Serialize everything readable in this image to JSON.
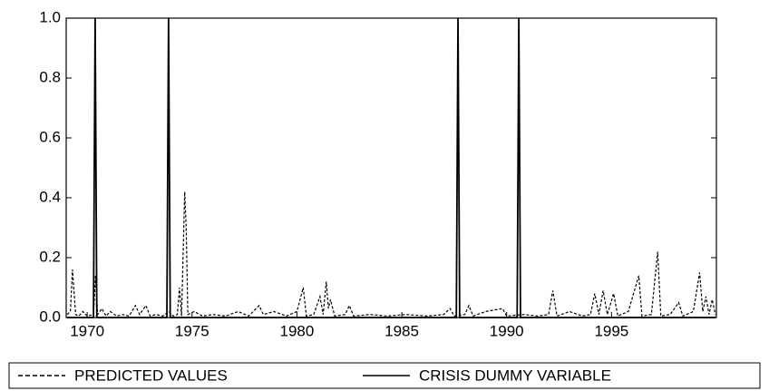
{
  "chart_data": {
    "type": "line",
    "xlim": [
      1969,
      2000
    ],
    "xticks": [
      1970,
      1975,
      1980,
      1985,
      1990,
      1995
    ],
    "ylim": [
      0,
      1
    ],
    "yticks": [
      {
        "value": 0,
        "label": "0.0"
      },
      {
        "value": 0.2,
        "label": "0.2"
      },
      {
        "value": 0.4,
        "label": "0.4"
      },
      {
        "value": 0.6,
        "label": "0.6"
      },
      {
        "value": 0.8,
        "label": "0.8"
      },
      {
        "value": 1,
        "label": "1.0"
      }
    ],
    "legend": "bottom",
    "series": [
      {
        "name": "PREDICTED VALUES",
        "color": "#000000",
        "dash": "dashed",
        "x": [
          1969.05,
          1969.2,
          1969.3,
          1969.45,
          1969.6,
          1969.8,
          1970.0,
          1970.3,
          1970.4,
          1970.5,
          1970.7,
          1970.9,
          1971.1,
          1971.4,
          1971.7,
          1972.0,
          1972.3,
          1972.5,
          1972.8,
          1973.0,
          1973.3,
          1973.6,
          1973.9,
          1974.1,
          1974.3,
          1974.4,
          1974.5,
          1974.65,
          1974.72,
          1974.8,
          1975.1,
          1975.5,
          1976.0,
          1976.6,
          1977.2,
          1977.7,
          1978.2,
          1978.4,
          1978.9,
          1979.5,
          1980.0,
          1980.3,
          1980.45,
          1980.8,
          1981.1,
          1981.25,
          1981.4,
          1981.5,
          1981.6,
          1981.8,
          1982.3,
          1982.5,
          1982.7,
          1983.5,
          1984.3,
          1985.2,
          1986.2,
          1987.0,
          1987.3,
          1987.5,
          1988.0,
          1988.2,
          1988.4,
          1989.0,
          1989.8,
          1990.0,
          1990.8,
          1991.5,
          1992.0,
          1992.2,
          1992.4,
          1993.0,
          1993.6,
          1994.0,
          1994.2,
          1994.4,
          1994.6,
          1994.8,
          1995.1,
          1995.3,
          1995.8,
          1996.3,
          1996.45,
          1996.9,
          1997.2,
          1997.35,
          1997.8,
          1998.2,
          1998.4,
          1998.9,
          1999.2,
          1999.35,
          1999.5,
          1999.65,
          1999.8,
          1999.95
        ],
        "values": [
          0.01,
          0.02,
          0.16,
          0.01,
          0.005,
          0.02,
          0.005,
          0.01,
          0.14,
          0.01,
          0.03,
          0.005,
          0.02,
          0.005,
          0.01,
          0.005,
          0.04,
          0.01,
          0.04,
          0.005,
          0.01,
          0.005,
          0.02,
          0.005,
          0.01,
          0.1,
          0.005,
          0.42,
          0.3,
          0.01,
          0.02,
          0.005,
          0.01,
          0.005,
          0.02,
          0.005,
          0.04,
          0.01,
          0.02,
          0.005,
          0.02,
          0.1,
          0.005,
          0.01,
          0.07,
          0.01,
          0.12,
          0.03,
          0.06,
          0.005,
          0.01,
          0.04,
          0.005,
          0.01,
          0.005,
          0.01,
          0.005,
          0.01,
          0.03,
          0.005,
          0.01,
          0.04,
          0.005,
          0.02,
          0.03,
          0.005,
          0.01,
          0.005,
          0.01,
          0.09,
          0.005,
          0.02,
          0.005,
          0.01,
          0.08,
          0.01,
          0.09,
          0.01,
          0.08,
          0.005,
          0.02,
          0.14,
          0.005,
          0.01,
          0.22,
          0.005,
          0.01,
          0.05,
          0.005,
          0.02,
          0.15,
          0.02,
          0.07,
          0.01,
          0.06,
          0.01
        ]
      },
      {
        "name": "CRISIS DUMMY VARIABLE",
        "color": "#000000",
        "dash": "solid",
        "x": [
          1969.05,
          1970.3,
          1970.38,
          1970.46,
          1973.8,
          1973.88,
          1973.96,
          1987.6,
          1987.68,
          1987.76,
          1990.5,
          1990.58,
          1990.66,
          1999.95
        ],
        "values": [
          0,
          0,
          1,
          0,
          0,
          1,
          0,
          0,
          1,
          0,
          0,
          1,
          0,
          0
        ]
      }
    ]
  }
}
